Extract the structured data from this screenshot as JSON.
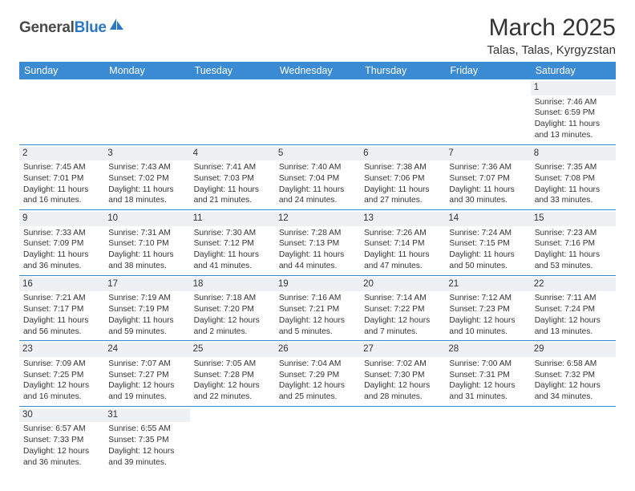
{
  "brand": {
    "part1": "General",
    "part2": "Blue"
  },
  "title": "March 2025",
  "location": "Talas, Talas, Kyrgyzstan",
  "colors": {
    "header_bg": "#3b8bd4",
    "header_text": "#ffffff",
    "daynum_bg": "#eef1f3",
    "border": "#3b8bd4",
    "brand_blue": "#2d78c3",
    "brand_gray": "#4a4a4a"
  },
  "day_headers": [
    "Sunday",
    "Monday",
    "Tuesday",
    "Wednesday",
    "Thursday",
    "Friday",
    "Saturday"
  ],
  "weeks": [
    [
      null,
      null,
      null,
      null,
      null,
      null,
      {
        "n": "1",
        "sunrise": "Sunrise: 7:46 AM",
        "sunset": "Sunset: 6:59 PM",
        "d1": "Daylight: 11 hours",
        "d2": "and 13 minutes."
      }
    ],
    [
      {
        "n": "2",
        "sunrise": "Sunrise: 7:45 AM",
        "sunset": "Sunset: 7:01 PM",
        "d1": "Daylight: 11 hours",
        "d2": "and 16 minutes."
      },
      {
        "n": "3",
        "sunrise": "Sunrise: 7:43 AM",
        "sunset": "Sunset: 7:02 PM",
        "d1": "Daylight: 11 hours",
        "d2": "and 18 minutes."
      },
      {
        "n": "4",
        "sunrise": "Sunrise: 7:41 AM",
        "sunset": "Sunset: 7:03 PM",
        "d1": "Daylight: 11 hours",
        "d2": "and 21 minutes."
      },
      {
        "n": "5",
        "sunrise": "Sunrise: 7:40 AM",
        "sunset": "Sunset: 7:04 PM",
        "d1": "Daylight: 11 hours",
        "d2": "and 24 minutes."
      },
      {
        "n": "6",
        "sunrise": "Sunrise: 7:38 AM",
        "sunset": "Sunset: 7:06 PM",
        "d1": "Daylight: 11 hours",
        "d2": "and 27 minutes."
      },
      {
        "n": "7",
        "sunrise": "Sunrise: 7:36 AM",
        "sunset": "Sunset: 7:07 PM",
        "d1": "Daylight: 11 hours",
        "d2": "and 30 minutes."
      },
      {
        "n": "8",
        "sunrise": "Sunrise: 7:35 AM",
        "sunset": "Sunset: 7:08 PM",
        "d1": "Daylight: 11 hours",
        "d2": "and 33 minutes."
      }
    ],
    [
      {
        "n": "9",
        "sunrise": "Sunrise: 7:33 AM",
        "sunset": "Sunset: 7:09 PM",
        "d1": "Daylight: 11 hours",
        "d2": "and 36 minutes."
      },
      {
        "n": "10",
        "sunrise": "Sunrise: 7:31 AM",
        "sunset": "Sunset: 7:10 PM",
        "d1": "Daylight: 11 hours",
        "d2": "and 38 minutes."
      },
      {
        "n": "11",
        "sunrise": "Sunrise: 7:30 AM",
        "sunset": "Sunset: 7:12 PM",
        "d1": "Daylight: 11 hours",
        "d2": "and 41 minutes."
      },
      {
        "n": "12",
        "sunrise": "Sunrise: 7:28 AM",
        "sunset": "Sunset: 7:13 PM",
        "d1": "Daylight: 11 hours",
        "d2": "and 44 minutes."
      },
      {
        "n": "13",
        "sunrise": "Sunrise: 7:26 AM",
        "sunset": "Sunset: 7:14 PM",
        "d1": "Daylight: 11 hours",
        "d2": "and 47 minutes."
      },
      {
        "n": "14",
        "sunrise": "Sunrise: 7:24 AM",
        "sunset": "Sunset: 7:15 PM",
        "d1": "Daylight: 11 hours",
        "d2": "and 50 minutes."
      },
      {
        "n": "15",
        "sunrise": "Sunrise: 7:23 AM",
        "sunset": "Sunset: 7:16 PM",
        "d1": "Daylight: 11 hours",
        "d2": "and 53 minutes."
      }
    ],
    [
      {
        "n": "16",
        "sunrise": "Sunrise: 7:21 AM",
        "sunset": "Sunset: 7:17 PM",
        "d1": "Daylight: 11 hours",
        "d2": "and 56 minutes."
      },
      {
        "n": "17",
        "sunrise": "Sunrise: 7:19 AM",
        "sunset": "Sunset: 7:19 PM",
        "d1": "Daylight: 11 hours",
        "d2": "and 59 minutes."
      },
      {
        "n": "18",
        "sunrise": "Sunrise: 7:18 AM",
        "sunset": "Sunset: 7:20 PM",
        "d1": "Daylight: 12 hours",
        "d2": "and 2 minutes."
      },
      {
        "n": "19",
        "sunrise": "Sunrise: 7:16 AM",
        "sunset": "Sunset: 7:21 PM",
        "d1": "Daylight: 12 hours",
        "d2": "and 5 minutes."
      },
      {
        "n": "20",
        "sunrise": "Sunrise: 7:14 AM",
        "sunset": "Sunset: 7:22 PM",
        "d1": "Daylight: 12 hours",
        "d2": "and 7 minutes."
      },
      {
        "n": "21",
        "sunrise": "Sunrise: 7:12 AM",
        "sunset": "Sunset: 7:23 PM",
        "d1": "Daylight: 12 hours",
        "d2": "and 10 minutes."
      },
      {
        "n": "22",
        "sunrise": "Sunrise: 7:11 AM",
        "sunset": "Sunset: 7:24 PM",
        "d1": "Daylight: 12 hours",
        "d2": "and 13 minutes."
      }
    ],
    [
      {
        "n": "23",
        "sunrise": "Sunrise: 7:09 AM",
        "sunset": "Sunset: 7:25 PM",
        "d1": "Daylight: 12 hours",
        "d2": "and 16 minutes."
      },
      {
        "n": "24",
        "sunrise": "Sunrise: 7:07 AM",
        "sunset": "Sunset: 7:27 PM",
        "d1": "Daylight: 12 hours",
        "d2": "and 19 minutes."
      },
      {
        "n": "25",
        "sunrise": "Sunrise: 7:05 AM",
        "sunset": "Sunset: 7:28 PM",
        "d1": "Daylight: 12 hours",
        "d2": "and 22 minutes."
      },
      {
        "n": "26",
        "sunrise": "Sunrise: 7:04 AM",
        "sunset": "Sunset: 7:29 PM",
        "d1": "Daylight: 12 hours",
        "d2": "and 25 minutes."
      },
      {
        "n": "27",
        "sunrise": "Sunrise: 7:02 AM",
        "sunset": "Sunset: 7:30 PM",
        "d1": "Daylight: 12 hours",
        "d2": "and 28 minutes."
      },
      {
        "n": "28",
        "sunrise": "Sunrise: 7:00 AM",
        "sunset": "Sunset: 7:31 PM",
        "d1": "Daylight: 12 hours",
        "d2": "and 31 minutes."
      },
      {
        "n": "29",
        "sunrise": "Sunrise: 6:58 AM",
        "sunset": "Sunset: 7:32 PM",
        "d1": "Daylight: 12 hours",
        "d2": "and 34 minutes."
      }
    ],
    [
      {
        "n": "30",
        "sunrise": "Sunrise: 6:57 AM",
        "sunset": "Sunset: 7:33 PM",
        "d1": "Daylight: 12 hours",
        "d2": "and 36 minutes."
      },
      {
        "n": "31",
        "sunrise": "Sunrise: 6:55 AM",
        "sunset": "Sunset: 7:35 PM",
        "d1": "Daylight: 12 hours",
        "d2": "and 39 minutes."
      },
      null,
      null,
      null,
      null,
      null
    ]
  ]
}
